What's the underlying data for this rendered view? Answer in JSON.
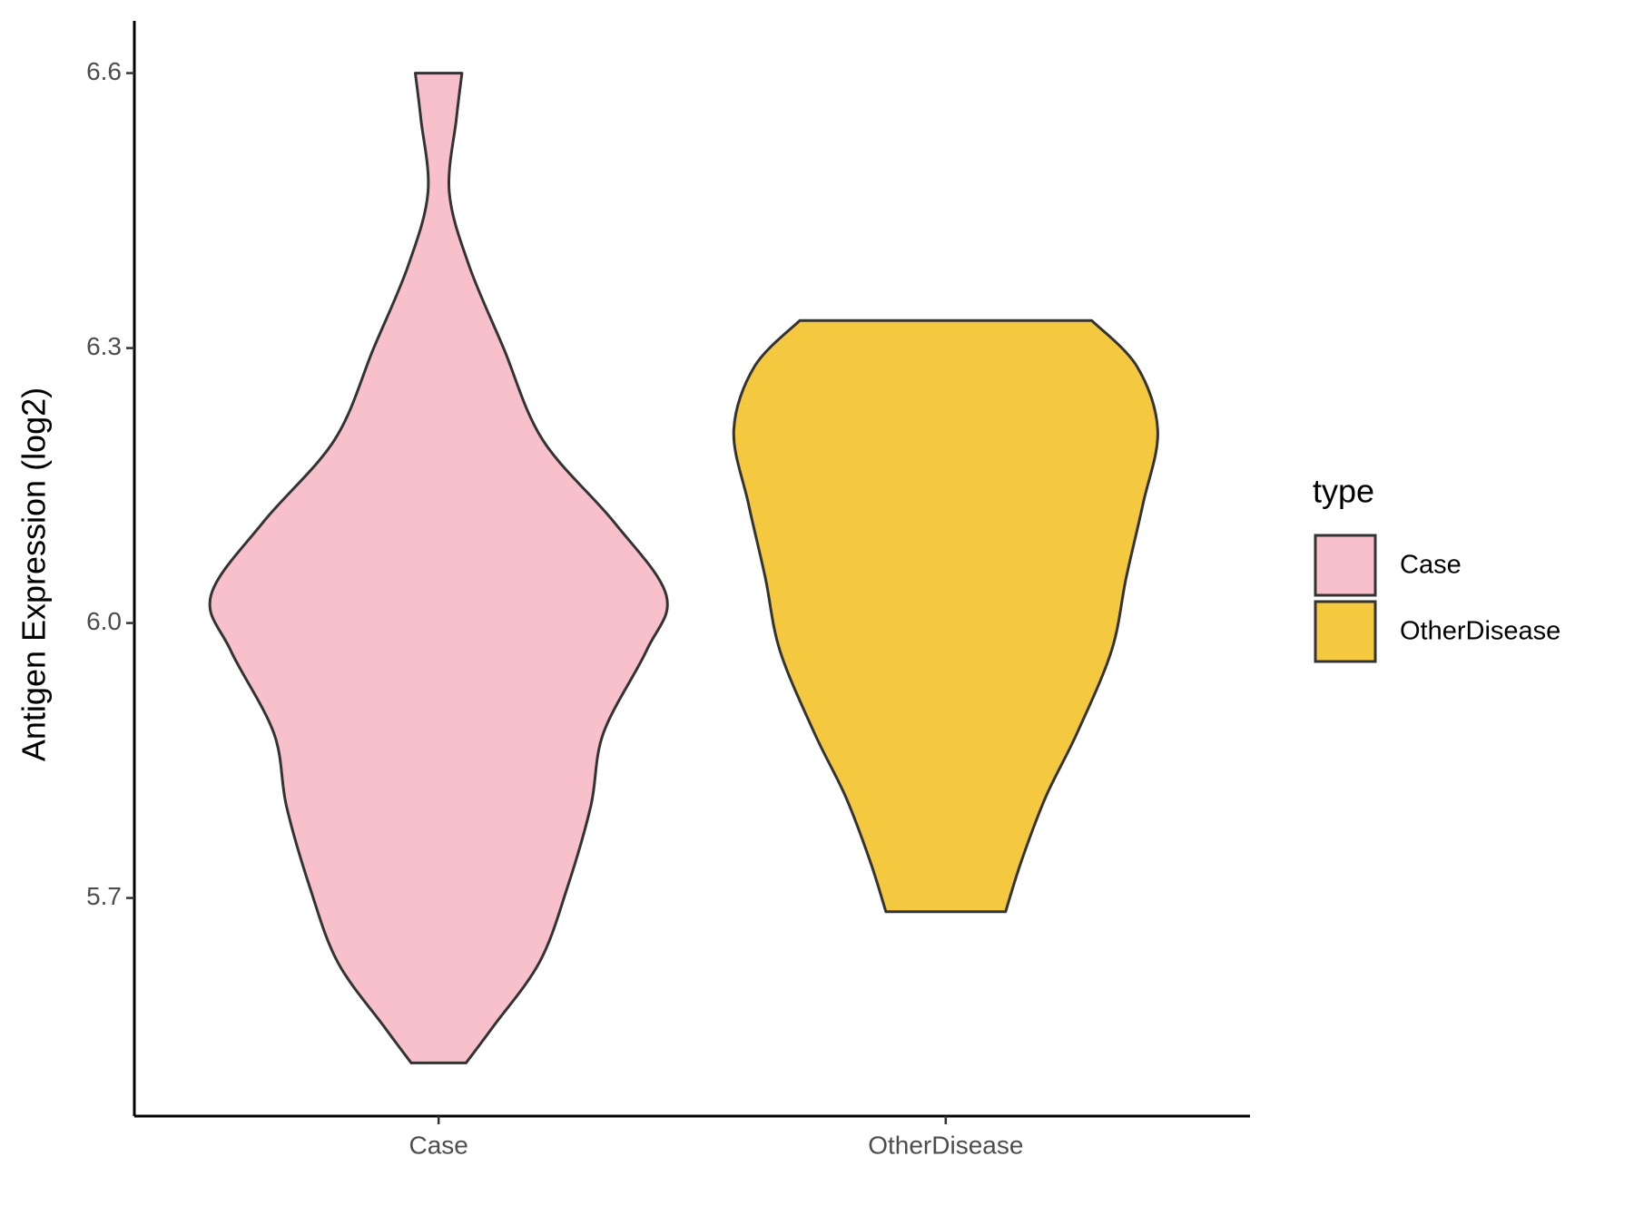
{
  "chart_data": {
    "type": "violin",
    "y_label": "Antigen Expression (log2)",
    "legend_title": "type",
    "categories": [
      "Case",
      "OtherDisease"
    ],
    "ylim": [
      5.462,
      6.657
    ],
    "yticks": [
      5.7,
      {
        "value": 6,
        "label": "6.0"
      },
      6.3,
      6.6
    ],
    "series": [
      {
        "name": "Case",
        "color": "#f7c0cb",
        "y": [
          6.6,
          6.55,
          6.47,
          6.39,
          6.3,
          6.2,
          6.11,
          6.03,
          5.97,
          5.88,
          5.8,
          5.71,
          5.63,
          5.56,
          5.52
        ],
        "width": [
          0.046,
          0.035,
          0.021,
          0.06,
          0.128,
          0.205,
          0.346,
          0.449,
          0.41,
          0.325,
          0.3,
          0.253,
          0.199,
          0.108,
          0.054
        ]
      },
      {
        "name": "OtherDisease",
        "color": "#f5c93f",
        "y": [
          6.33,
          6.28,
          6.21,
          6.13,
          6.05,
          5.97,
          5.88,
          5.81,
          5.74,
          5.685
        ],
        "width": [
          0.288,
          0.377,
          0.418,
          0.389,
          0.356,
          0.327,
          0.259,
          0.197,
          0.149,
          0.118
        ]
      }
    ]
  }
}
